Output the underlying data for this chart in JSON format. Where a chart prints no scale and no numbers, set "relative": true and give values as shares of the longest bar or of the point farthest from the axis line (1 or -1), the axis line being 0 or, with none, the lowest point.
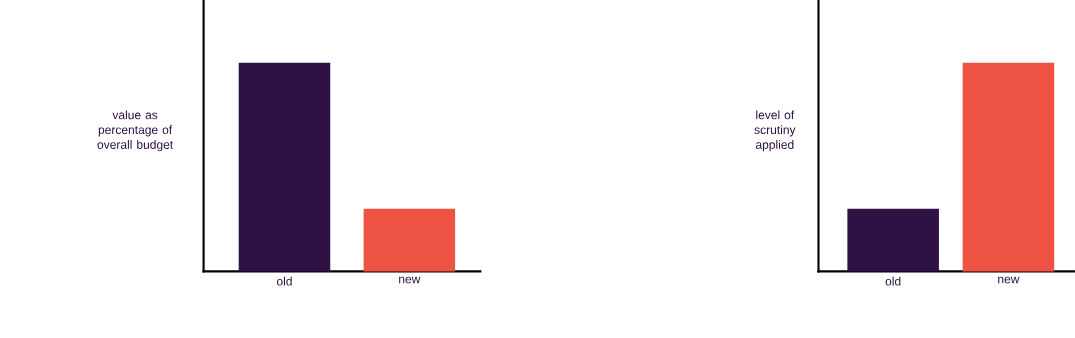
{
  "chart_data": [
    {
      "type": "bar",
      "ylabel": "value as percentage of overall budget",
      "categories": [
        "old",
        "new"
      ],
      "values": [
        1,
        0.3
      ],
      "colors": [
        "#2e1145",
        "#ee5242"
      ],
      "relative": true
    },
    {
      "type": "bar",
      "ylabel": "level of scrutiny applied",
      "categories": [
        "old",
        "new"
      ],
      "values": [
        0.3,
        1
      ],
      "colors": [
        "#2e1145",
        "#ee5242"
      ],
      "relative": true
    }
  ]
}
